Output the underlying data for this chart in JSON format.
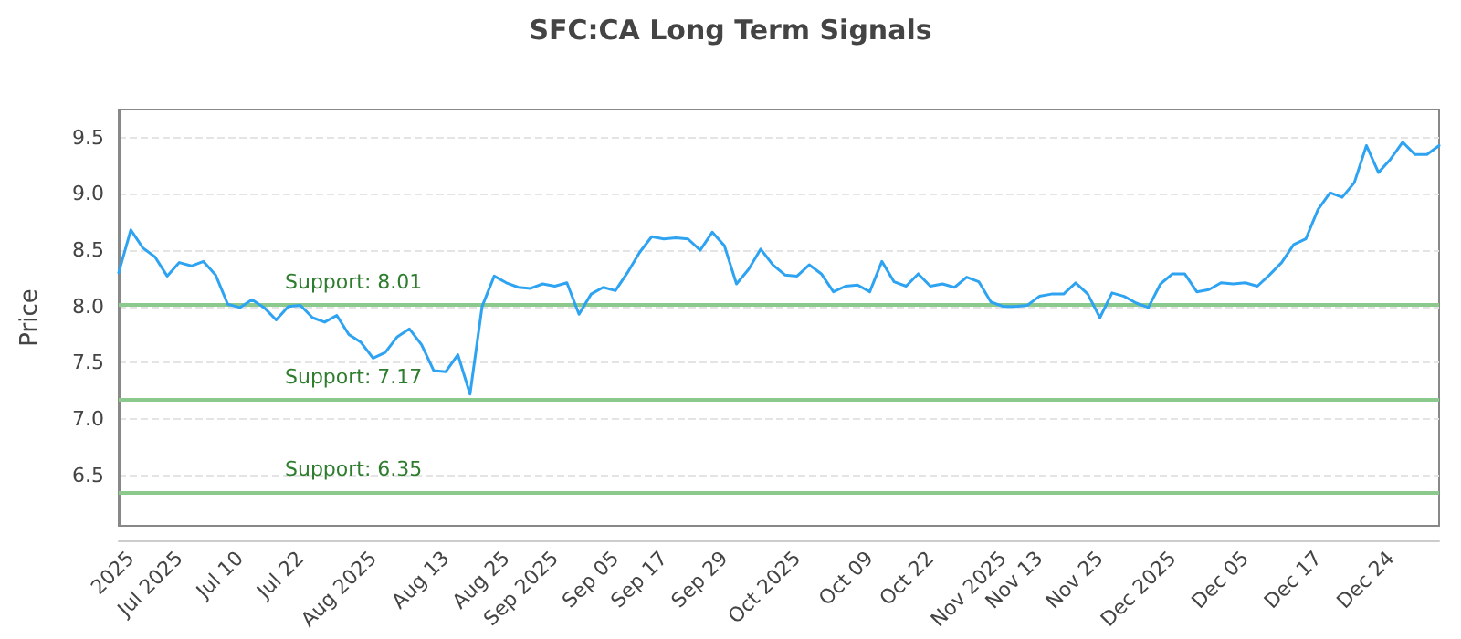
{
  "chart_data": {
    "type": "line",
    "title": "SFC:CA Long Term Signals",
    "ylabel": "Price",
    "categories": [
      null,
      "2025",
      null,
      null,
      null,
      "Jul 2025",
      null,
      null,
      null,
      null,
      "Jul 10",
      null,
      null,
      null,
      null,
      "Jul 22",
      null,
      null,
      null,
      null,
      null,
      "Aug 2025",
      null,
      null,
      null,
      null,
      null,
      "Aug 13",
      null,
      null,
      null,
      null,
      "Aug 25",
      null,
      null,
      null,
      "Sep 2025",
      null,
      null,
      null,
      null,
      "Sep 05",
      null,
      null,
      null,
      "Sep 17",
      null,
      null,
      null,
      null,
      "Sep 29",
      null,
      null,
      null,
      null,
      null,
      "Oct 2025",
      null,
      null,
      null,
      null,
      null,
      "Oct 09",
      null,
      null,
      null,
      null,
      "Oct 22",
      null,
      null,
      null,
      null,
      null,
      "Nov 2025",
      null,
      null,
      "Nov 13",
      null,
      null,
      null,
      null,
      "Nov 25",
      null,
      null,
      null,
      null,
      null,
      "Dec 2025",
      null,
      null,
      null,
      null,
      null,
      "Dec 05",
      null,
      null,
      null,
      null,
      null,
      "Dec 17",
      null,
      null,
      null,
      null,
      null,
      "Dec 24",
      null,
      null,
      null,
      null
    ],
    "series": [
      {
        "color": "#2ea3f2",
        "values": [
          8.3,
          8.68,
          8.52,
          8.44,
          8.27,
          8.39,
          8.36,
          8.4,
          8.28,
          8.02,
          7.99,
          8.06,
          7.99,
          7.88,
          8.0,
          8.01,
          7.9,
          7.86,
          7.92,
          7.75,
          7.68,
          7.54,
          7.59,
          7.73,
          7.8,
          7.66,
          7.43,
          7.42,
          7.57,
          7.22,
          8.0,
          8.27,
          8.21,
          8.17,
          8.16,
          8.2,
          8.18,
          8.21,
          7.93,
          8.11,
          8.17,
          8.14,
          8.3,
          8.48,
          8.62,
          8.6,
          8.61,
          8.6,
          8.5,
          8.66,
          8.54,
          8.2,
          8.33,
          8.51,
          8.37,
          8.28,
          8.27,
          8.37,
          8.29,
          8.13,
          8.18,
          8.19,
          8.13,
          8.4,
          8.22,
          8.18,
          8.29,
          8.18,
          8.2,
          8.17,
          8.26,
          8.22,
          8.04,
          8.0,
          8.0,
          8.01,
          8.09,
          8.11,
          8.11,
          8.21,
          8.11,
          7.9,
          8.12,
          8.09,
          8.03,
          7.99,
          8.2,
          8.29,
          8.29,
          8.13,
          8.15,
          8.21,
          8.2,
          8.21,
          8.18,
          8.28,
          8.39,
          8.55,
          8.6,
          8.86,
          9.01,
          8.97,
          9.1,
          9.43,
          9.19,
          9.31,
          9.46,
          9.35,
          9.35,
          9.43
        ]
      }
    ],
    "ylim": [
      6.05,
      9.75
    ],
    "yticks": [
      6.5,
      {
        "value": 7,
        "label": "7.0"
      },
      7.5,
      {
        "value": 8,
        "label": "8.0"
      },
      8.5,
      {
        "value": 9,
        "label": "9.0"
      },
      9.5
    ],
    "ref_lines": [
      {
        "axis": "y",
        "value": 8.01,
        "label": "Support: 8.01",
        "color": "#8cc98c"
      },
      {
        "axis": "y",
        "value": 7.17,
        "label": "Support: 7.17",
        "color": "#8cc98c"
      },
      {
        "axis": "y",
        "value": 6.35,
        "label": "Support: 6.35",
        "color": "#8cc98c"
      }
    ],
    "grid": "y",
    "marker": "none",
    "line_style": "solid"
  }
}
